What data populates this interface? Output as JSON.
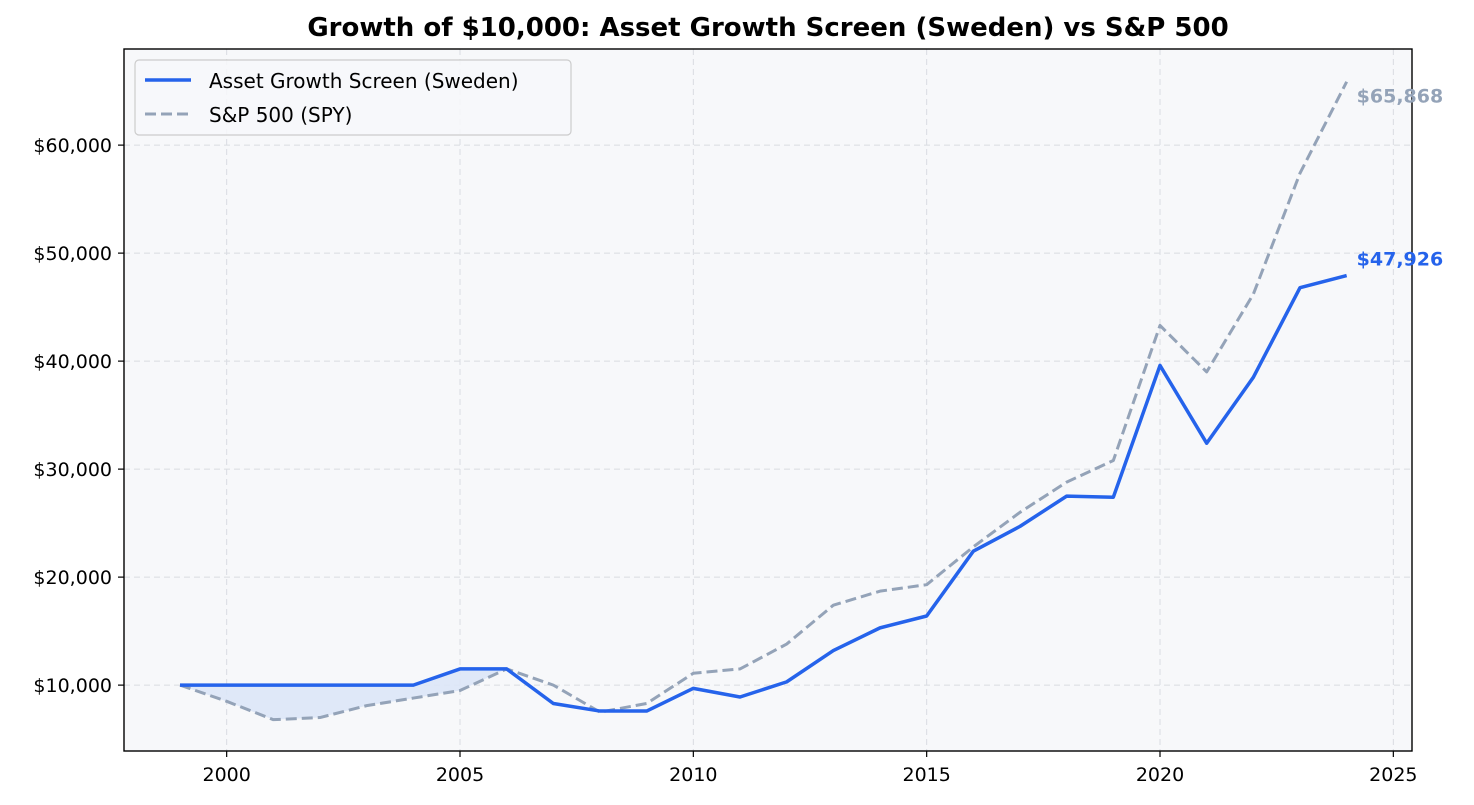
{
  "chart_data": {
    "type": "line",
    "title": "Growth of $10,000: Asset Growth Screen (Sweden) vs S&P 500",
    "xlabel": "",
    "ylabel": "",
    "xlim": [
      1997.8,
      2025.4
    ],
    "ylim": [
      3900,
      68900
    ],
    "x_ticks": [
      2000,
      2005,
      2010,
      2015,
      2020,
      2025
    ],
    "x_tick_labels": [
      "2000",
      "2005",
      "2010",
      "2015",
      "2020",
      "2025"
    ],
    "y_ticks": [
      10000,
      20000,
      30000,
      40000,
      50000,
      60000
    ],
    "y_tick_labels": [
      "$10,000",
      "$20,000",
      "$30,000",
      "$40,000",
      "$50,000",
      "$60,000"
    ],
    "grid": true,
    "legend_position": "upper-left",
    "x": [
      1999,
      2000,
      2001,
      2002,
      2003,
      2004,
      2005,
      2006,
      2007,
      2008,
      2009,
      2010,
      2011,
      2012,
      2013,
      2014,
      2015,
      2016,
      2017,
      2018,
      2019,
      2020,
      2021,
      2022,
      2023,
      2024
    ],
    "series": [
      {
        "name": "Asset Growth Screen (Sweden)",
        "color": "#2563eb",
        "style": "solid",
        "values": [
          10000,
          10000,
          10000,
          10000,
          10000,
          10000,
          11500,
          11500,
          8300,
          7600,
          7600,
          9700,
          8900,
          10300,
          13200,
          15300,
          16400,
          22400,
          24700,
          27500,
          27400,
          39600,
          32400,
          38500,
          46800,
          47926
        ]
      },
      {
        "name": "S&P 500 (SPY)",
        "color": "#94a3b8",
        "style": "dashed",
        "values": [
          10000,
          8500,
          6800,
          7000,
          8100,
          8800,
          9500,
          11500,
          10000,
          7500,
          8300,
          11100,
          11500,
          13800,
          17400,
          18700,
          19300,
          22800,
          26000,
          28800,
          30800,
          43300,
          39000,
          46200,
          57400,
          65868
        ]
      }
    ],
    "end_labels": [
      "$47,926",
      "$65,868"
    ],
    "fill_between_color": "#dbe5f7"
  }
}
